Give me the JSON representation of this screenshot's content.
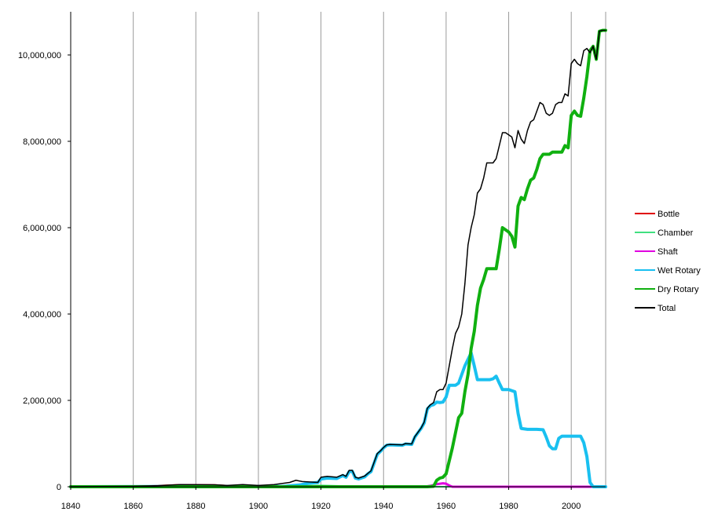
{
  "chart_data": {
    "type": "line",
    "title": "",
    "xlabel": "",
    "ylabel": "",
    "xlim": [
      1840,
      2011
    ],
    "ylim": [
      0,
      11000000
    ],
    "x_ticks": [
      1840,
      1860,
      1880,
      1900,
      1920,
      1940,
      1960,
      1980,
      2000
    ],
    "x_tick_labels": [
      "1840",
      "1860",
      "1880",
      "1900",
      "1920",
      "1940",
      "1960",
      "1980",
      "2000"
    ],
    "y_ticks": [
      0,
      2000000,
      4000000,
      6000000,
      8000000,
      10000000
    ],
    "y_tick_labels": [
      "0",
      "2,000,000",
      "4,000,000",
      "6,000,000",
      "8,000,000",
      "10,000,000"
    ],
    "grid": "vertical",
    "legend_position": "right",
    "series": [
      {
        "name": "Bottle",
        "color": "#e00000",
        "width": 2,
        "points": [
          [
            1840,
            0
          ],
          [
            1860,
            5000
          ],
          [
            1868,
            25000
          ],
          [
            1875,
            45000
          ],
          [
            1886,
            40000
          ],
          [
            1890,
            25000
          ],
          [
            1900,
            15000
          ],
          [
            1910,
            10000
          ],
          [
            1920,
            5000
          ],
          [
            1930,
            0
          ],
          [
            2011,
            0
          ]
        ]
      },
      {
        "name": "Chamber",
        "color": "#40e080",
        "width": 2,
        "points": [
          [
            1840,
            0
          ],
          [
            1900,
            0
          ],
          [
            1910,
            10000
          ],
          [
            1920,
            30000
          ],
          [
            1925,
            20000
          ],
          [
            1930,
            10000
          ],
          [
            1940,
            0
          ],
          [
            2011,
            0
          ]
        ]
      },
      {
        "name": "Shaft",
        "color": "#e000e0",
        "width": 3,
        "points": [
          [
            1840,
            0
          ],
          [
            1953,
            0
          ],
          [
            1955,
            20000
          ],
          [
            1957,
            60000
          ],
          [
            1959,
            80000
          ],
          [
            1960,
            70000
          ],
          [
            1961,
            30000
          ],
          [
            1962,
            0
          ],
          [
            2011,
            0
          ]
        ]
      },
      {
        "name": "Wet Rotary",
        "color": "#19c0f0",
        "width": 4,
        "points": [
          [
            1840,
            0
          ],
          [
            1908,
            10000
          ],
          [
            1913,
            40000
          ],
          [
            1916,
            80000
          ],
          [
            1919,
            100000
          ],
          [
            1920,
            180000
          ],
          [
            1922,
            200000
          ],
          [
            1925,
            190000
          ],
          [
            1927,
            260000
          ],
          [
            1928,
            220000
          ],
          [
            1929,
            350000
          ],
          [
            1930,
            360000
          ],
          [
            1931,
            200000
          ],
          [
            1932,
            180000
          ],
          [
            1934,
            230000
          ],
          [
            1935,
            300000
          ],
          [
            1936,
            350000
          ],
          [
            1937,
            550000
          ],
          [
            1938,
            750000
          ],
          [
            1939,
            820000
          ],
          [
            1940,
            900000
          ],
          [
            1941,
            960000
          ],
          [
            1942,
            970000
          ],
          [
            1946,
            960000
          ],
          [
            1947,
            990000
          ],
          [
            1949,
            980000
          ],
          [
            1950,
            1150000
          ],
          [
            1951,
            1250000
          ],
          [
            1952,
            1350000
          ],
          [
            1953,
            1480000
          ],
          [
            1954,
            1800000
          ],
          [
            1955,
            1880000
          ],
          [
            1956,
            1900000
          ],
          [
            1957,
            1960000
          ],
          [
            1958,
            1950000
          ],
          [
            1959,
            1960000
          ],
          [
            1960,
            2080000
          ],
          [
            1961,
            2350000
          ],
          [
            1963,
            2350000
          ],
          [
            1964,
            2400000
          ],
          [
            1965,
            2600000
          ],
          [
            1966,
            2800000
          ],
          [
            1967,
            2950000
          ],
          [
            1968,
            3100000
          ],
          [
            1969,
            2800000
          ],
          [
            1970,
            2480000
          ],
          [
            1972,
            2480000
          ],
          [
            1974,
            2480000
          ],
          [
            1975,
            2500000
          ],
          [
            1976,
            2560000
          ],
          [
            1977,
            2400000
          ],
          [
            1978,
            2250000
          ],
          [
            1980,
            2250000
          ],
          [
            1982,
            2200000
          ],
          [
            1983,
            1700000
          ],
          [
            1984,
            1350000
          ],
          [
            1986,
            1330000
          ],
          [
            1989,
            1330000
          ],
          [
            1991,
            1320000
          ],
          [
            1992,
            1150000
          ],
          [
            1993,
            950000
          ],
          [
            1994,
            880000
          ],
          [
            1995,
            880000
          ],
          [
            1996,
            1120000
          ],
          [
            1997,
            1170000
          ],
          [
            1999,
            1170000
          ],
          [
            2003,
            1170000
          ],
          [
            2004,
            1020000
          ],
          [
            2005,
            700000
          ],
          [
            2006,
            100000
          ],
          [
            2007,
            0
          ],
          [
            2011,
            0
          ]
        ]
      },
      {
        "name": "Dry Rotary",
        "color": "#10b010",
        "width": 4,
        "points": [
          [
            1840,
            0
          ],
          [
            1954,
            0
          ],
          [
            1956,
            10000
          ],
          [
            1957,
            150000
          ],
          [
            1958,
            200000
          ],
          [
            1959,
            220000
          ],
          [
            1960,
            300000
          ],
          [
            1961,
            600000
          ],
          [
            1962,
            900000
          ],
          [
            1963,
            1250000
          ],
          [
            1964,
            1600000
          ],
          [
            1965,
            1700000
          ],
          [
            1966,
            2200000
          ],
          [
            1967,
            2600000
          ],
          [
            1968,
            3200000
          ],
          [
            1969,
            3600000
          ],
          [
            1970,
            4200000
          ],
          [
            1971,
            4600000
          ],
          [
            1972,
            4800000
          ],
          [
            1973,
            5050000
          ],
          [
            1976,
            5050000
          ],
          [
            1977,
            5500000
          ],
          [
            1978,
            6000000
          ],
          [
            1980,
            5900000
          ],
          [
            1981,
            5800000
          ],
          [
            1982,
            5550000
          ],
          [
            1983,
            6500000
          ],
          [
            1984,
            6700000
          ],
          [
            1985,
            6650000
          ],
          [
            1986,
            6900000
          ],
          [
            1987,
            7100000
          ],
          [
            1988,
            7150000
          ],
          [
            1989,
            7350000
          ],
          [
            1990,
            7600000
          ],
          [
            1991,
            7700000
          ],
          [
            1993,
            7700000
          ],
          [
            1994,
            7750000
          ],
          [
            1997,
            7750000
          ],
          [
            1998,
            7900000
          ],
          [
            1999,
            7850000
          ],
          [
            2000,
            8600000
          ],
          [
            2001,
            8700000
          ],
          [
            2002,
            8600000
          ],
          [
            2003,
            8580000
          ],
          [
            2004,
            9000000
          ],
          [
            2005,
            9500000
          ],
          [
            2006,
            10100000
          ],
          [
            2007,
            10200000
          ],
          [
            2008,
            9900000
          ],
          [
            2009,
            10550000
          ],
          [
            2010,
            10570000
          ],
          [
            2011,
            10570000
          ]
        ]
      },
      {
        "name": "Total",
        "color": "#000000",
        "width": 1.5,
        "points": [
          [
            1840,
            0
          ],
          [
            1860,
            10000
          ],
          [
            1868,
            25000
          ],
          [
            1875,
            50000
          ],
          [
            1886,
            45000
          ],
          [
            1890,
            30000
          ],
          [
            1895,
            50000
          ],
          [
            1900,
            30000
          ],
          [
            1905,
            50000
          ],
          [
            1910,
            100000
          ],
          [
            1912,
            150000
          ],
          [
            1914,
            120000
          ],
          [
            1919,
            100000
          ],
          [
            1920,
            220000
          ],
          [
            1922,
            240000
          ],
          [
            1925,
            220000
          ],
          [
            1927,
            280000
          ],
          [
            1928,
            240000
          ],
          [
            1929,
            380000
          ],
          [
            1930,
            380000
          ],
          [
            1931,
            220000
          ],
          [
            1932,
            200000
          ],
          [
            1934,
            250000
          ],
          [
            1935,
            310000
          ],
          [
            1936,
            370000
          ],
          [
            1937,
            570000
          ],
          [
            1938,
            770000
          ],
          [
            1939,
            830000
          ],
          [
            1940,
            910000
          ],
          [
            1941,
            970000
          ],
          [
            1942,
            980000
          ],
          [
            1946,
            970000
          ],
          [
            1947,
            1000000
          ],
          [
            1949,
            990000
          ],
          [
            1950,
            1160000
          ],
          [
            1951,
            1260000
          ],
          [
            1952,
            1360000
          ],
          [
            1953,
            1500000
          ],
          [
            1954,
            1820000
          ],
          [
            1955,
            1900000
          ],
          [
            1956,
            1950000
          ],
          [
            1957,
            2200000
          ],
          [
            1958,
            2250000
          ],
          [
            1959,
            2250000
          ],
          [
            1960,
            2400000
          ],
          [
            1961,
            2800000
          ],
          [
            1962,
            3200000
          ],
          [
            1963,
            3550000
          ],
          [
            1964,
            3700000
          ],
          [
            1965,
            4000000
          ],
          [
            1966,
            4700000
          ],
          [
            1967,
            5600000
          ],
          [
            1968,
            6000000
          ],
          [
            1969,
            6300000
          ],
          [
            1970,
            6800000
          ],
          [
            1971,
            6900000
          ],
          [
            1972,
            7150000
          ],
          [
            1973,
            7500000
          ],
          [
            1975,
            7500000
          ],
          [
            1976,
            7600000
          ],
          [
            1977,
            7900000
          ],
          [
            1978,
            8200000
          ],
          [
            1979,
            8200000
          ],
          [
            1980,
            8150000
          ],
          [
            1981,
            8100000
          ],
          [
            1982,
            7850000
          ],
          [
            1983,
            8250000
          ],
          [
            1984,
            8050000
          ],
          [
            1985,
            7950000
          ],
          [
            1986,
            8250000
          ],
          [
            1987,
            8450000
          ],
          [
            1988,
            8500000
          ],
          [
            1989,
            8700000
          ],
          [
            1990,
            8900000
          ],
          [
            1991,
            8850000
          ],
          [
            1992,
            8650000
          ],
          [
            1993,
            8600000
          ],
          [
            1994,
            8650000
          ],
          [
            1995,
            8850000
          ],
          [
            1996,
            8900000
          ],
          [
            1997,
            8900000
          ],
          [
            1998,
            9100000
          ],
          [
            1999,
            9050000
          ],
          [
            2000,
            9800000
          ],
          [
            2001,
            9900000
          ],
          [
            2002,
            9800000
          ],
          [
            2003,
            9750000
          ],
          [
            2004,
            10100000
          ],
          [
            2005,
            10150000
          ],
          [
            2006,
            10050000
          ],
          [
            2007,
            10200000
          ],
          [
            2008,
            9900000
          ],
          [
            2009,
            10550000
          ],
          [
            2010,
            10570000
          ],
          [
            2011,
            10570000
          ]
        ]
      }
    ]
  }
}
